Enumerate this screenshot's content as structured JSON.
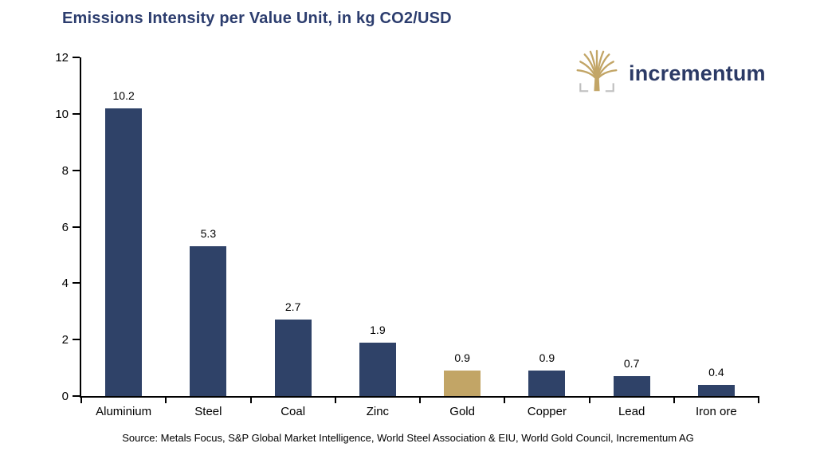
{
  "title": "Emissions Intensity per Value Unit, in kg CO2/USD",
  "logo": {
    "text": "incrementum",
    "icon": "tree-icon"
  },
  "source": "Source: Metals Focus, S&P Global Market Intelligence, World Steel Association & EIU, World Gold Council, Incrementum AG",
  "colors": {
    "bar": "#2F4268",
    "highlight_bar": "#C2A566",
    "title": "#2C3D6E",
    "logo_text": "#2B3A66",
    "logo_icon": "#C2A566",
    "axis": "#000000"
  },
  "chart_data": {
    "type": "bar",
    "title": "Emissions Intensity per Value Unit, in kg CO2/USD",
    "categories": [
      "Aluminium",
      "Steel",
      "Coal",
      "Zinc",
      "Gold",
      "Copper",
      "Lead",
      "Iron ore"
    ],
    "values": [
      10.2,
      5.3,
      2.7,
      1.9,
      0.9,
      0.9,
      0.7,
      0.4
    ],
    "value_labels": [
      "10.2",
      "5.3",
      "2.7",
      "1.9",
      "0.9",
      "0.9",
      "0.7",
      "0.4"
    ],
    "highlight_category": "Gold",
    "xlabel": "",
    "ylabel": "",
    "ylim": [
      0,
      12
    ],
    "yticks": [
      0,
      2,
      4,
      6,
      8,
      10,
      12
    ],
    "grid": false,
    "legend": false
  }
}
